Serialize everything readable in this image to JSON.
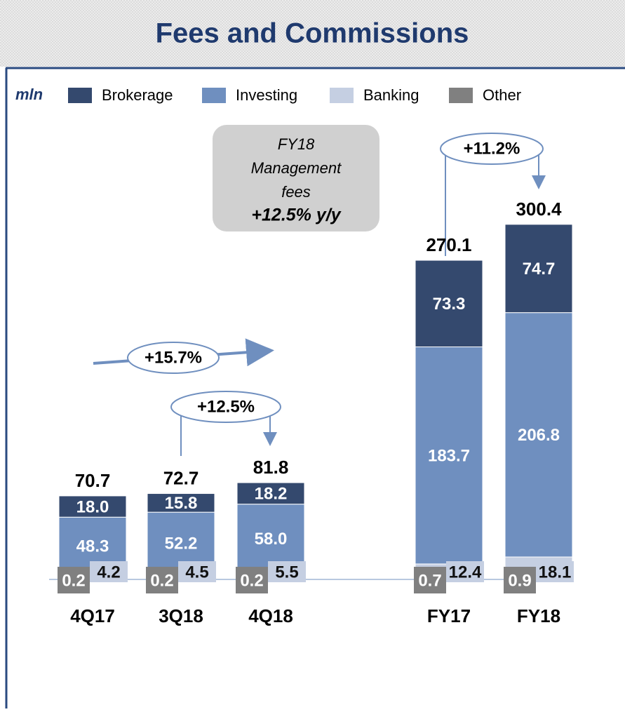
{
  "chart_data": {
    "type": "stacked_bar",
    "title": "Fees and Commissions",
    "unit_label": "mln",
    "categories": [
      "4Q17",
      "3Q18",
      "4Q18",
      "FY17",
      "FY18"
    ],
    "series": [
      {
        "name": "Other",
        "color": "#808080",
        "values": [
          0.2,
          0.2,
          0.2,
          0.7,
          0.9
        ]
      },
      {
        "name": "Banking",
        "color": "#c5cfe2",
        "values": [
          4.2,
          4.5,
          5.5,
          12.4,
          18.1
        ]
      },
      {
        "name": "Investing",
        "color": "#6f8fbf",
        "values": [
          48.3,
          52.2,
          58.0,
          183.7,
          206.8
        ],
        "value_labels": [
          "48.3",
          "52.2",
          "58.0",
          "183.7",
          "206.8"
        ]
      },
      {
        "name": "Brokerage",
        "color": "#34496e",
        "values": [
          18.0,
          15.8,
          18.2,
          73.3,
          74.7
        ],
        "value_labels": [
          "18.0",
          "15.8",
          "18.2",
          "73.3",
          "74.7"
        ]
      }
    ],
    "totals": [
      70.7,
      72.7,
      81.8,
      270.1,
      300.4
    ],
    "annotations": [
      "+15.7%",
      "+12.5%",
      "+11.2%"
    ],
    "callout": [
      "FY18",
      "Management",
      "fees",
      "+12.5% y/y"
    ]
  }
}
